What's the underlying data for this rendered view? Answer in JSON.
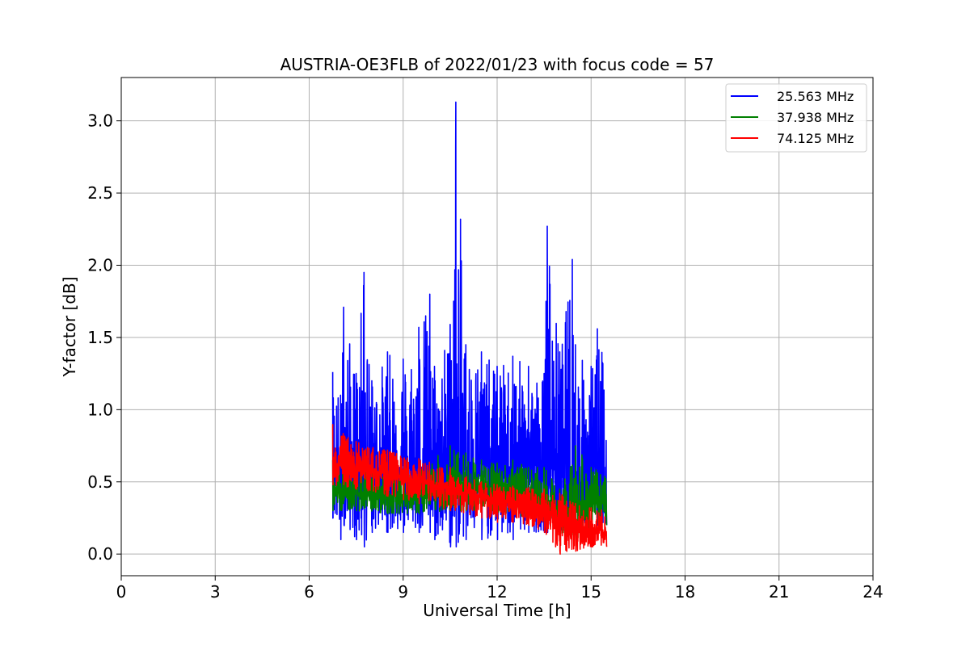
{
  "chart_data": {
    "type": "line",
    "title": "AUSTRIA-OE3FLB of 2022/01/23 with focus code = 57",
    "xlabel": "Universal Time [h]",
    "ylabel": "Y-factor [dB]",
    "xlim": [
      0,
      24
    ],
    "ylim": [
      -0.15,
      3.3
    ],
    "xticks": [
      0,
      3,
      6,
      9,
      12,
      15,
      18,
      21,
      24
    ],
    "xtick_labels": [
      "0",
      "3",
      "6",
      "9",
      "12",
      "15",
      "18",
      "21",
      "24"
    ],
    "yticks": [
      0.0,
      0.5,
      1.0,
      1.5,
      2.0,
      2.5,
      3.0
    ],
    "ytick_labels": [
      "0.0",
      "0.5",
      "1.0",
      "1.5",
      "2.0",
      "2.5",
      "3.0"
    ],
    "grid": true,
    "legend_position": "top-right",
    "series": [
      {
        "name": "25.563 MHz",
        "color": "#0000ff",
        "x": [
          6.75,
          7.0,
          7.1,
          7.5,
          7.75,
          8.0,
          8.5,
          9.0,
          9.5,
          9.85,
          10.0,
          10.5,
          10.68,
          11.0,
          11.5,
          12.0,
          12.5,
          13.0,
          13.5,
          13.6,
          14.0,
          14.4,
          14.5,
          15.0,
          15.2,
          15.5
        ],
        "upper": [
          1.26,
          1.1,
          1.71,
          1.25,
          1.95,
          1.2,
          1.4,
          1.35,
          1.57,
          1.8,
          1.3,
          1.59,
          3.13,
          1.45,
          1.4,
          1.3,
          1.37,
          1.3,
          1.25,
          2.27,
          1.4,
          2.04,
          1.45,
          1.3,
          1.56,
          1.26
        ],
        "center": [
          0.55,
          0.6,
          0.62,
          0.6,
          0.62,
          0.6,
          0.6,
          0.6,
          0.6,
          0.62,
          0.6,
          0.6,
          0.65,
          0.6,
          0.62,
          0.6,
          0.6,
          0.62,
          0.6,
          0.6,
          0.6,
          0.55,
          0.5,
          0.5,
          0.5,
          0.5
        ],
        "lower": [
          0.25,
          0.1,
          0.2,
          0.1,
          0.05,
          0.15,
          0.15,
          0.15,
          0.15,
          0.15,
          0.1,
          0.05,
          0.05,
          0.1,
          0.1,
          0.1,
          0.1,
          0.15,
          0.15,
          0.15,
          0.15,
          0.2,
          0.2,
          0.2,
          0.2,
          0.2
        ]
      },
      {
        "name": "37.938 MHz",
        "color": "#008000",
        "x": [
          6.75,
          7.5,
          8.5,
          9.5,
          10.5,
          11.0,
          11.5,
          12.0,
          12.5,
          13.0,
          13.5,
          14.0,
          14.5,
          15.0,
          15.5
        ],
        "upper": [
          0.65,
          0.6,
          0.55,
          0.58,
          0.75,
          0.7,
          0.65,
          0.63,
          0.65,
          0.6,
          0.6,
          0.45,
          0.75,
          0.6,
          0.55
        ],
        "center": [
          0.43,
          0.42,
          0.4,
          0.4,
          0.42,
          0.45,
          0.45,
          0.42,
          0.42,
          0.4,
          0.38,
          0.28,
          0.35,
          0.35,
          0.35
        ],
        "lower": [
          0.3,
          0.3,
          0.28,
          0.28,
          0.3,
          0.3,
          0.3,
          0.28,
          0.28,
          0.25,
          0.22,
          0.15,
          0.1,
          0.15,
          0.2
        ]
      },
      {
        "name": "74.125 MHz",
        "color": "#ff0000",
        "x": [
          6.75,
          7.5,
          8.5,
          9.5,
          10.5,
          11.5,
          12.0,
          12.5,
          13.0,
          13.5,
          14.0,
          14.5,
          15.0,
          15.5
        ],
        "upper": [
          0.9,
          0.78,
          0.72,
          0.66,
          0.6,
          0.5,
          0.48,
          0.47,
          0.46,
          0.45,
          0.42,
          0.35,
          0.32,
          0.3
        ],
        "center": [
          0.62,
          0.6,
          0.55,
          0.5,
          0.45,
          0.4,
          0.37,
          0.36,
          0.35,
          0.33,
          0.2,
          0.17,
          0.15,
          0.15
        ],
        "lower": [
          0.48,
          0.45,
          0.4,
          0.35,
          0.3,
          0.25,
          0.22,
          0.22,
          0.2,
          0.15,
          0.0,
          0.02,
          0.05,
          0.05
        ]
      }
    ]
  }
}
